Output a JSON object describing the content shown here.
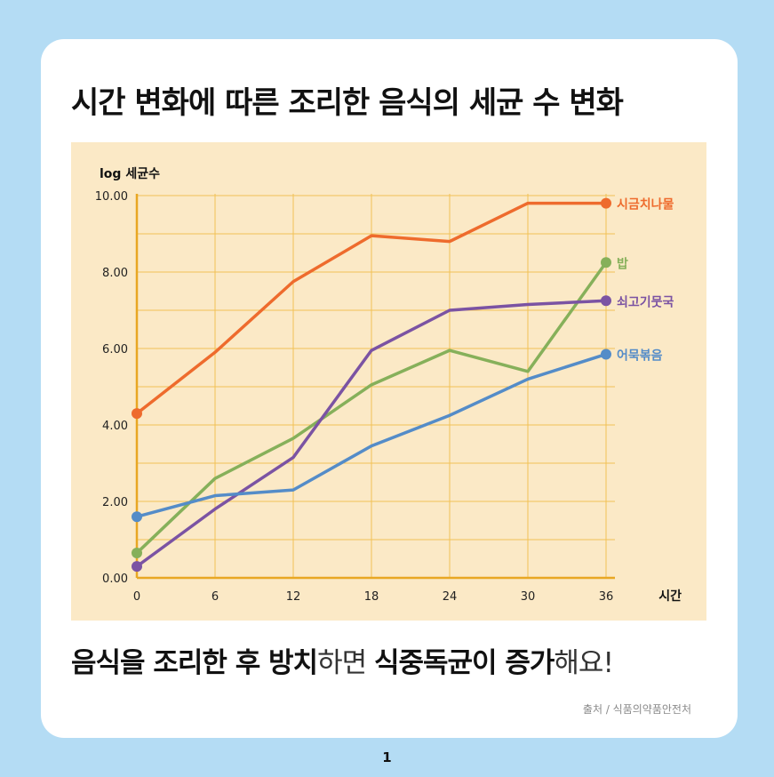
{
  "title": "시간 변화에 따른 조리한 음식의 세균 수 변화",
  "chart_data": {
    "type": "line",
    "ylabel": "log 세균수",
    "xlabel": "시간",
    "x": [
      0,
      6,
      12,
      18,
      24,
      30,
      36
    ],
    "x_tick_labels": [
      "0",
      "6",
      "12",
      "18",
      "24",
      "30",
      "36"
    ],
    "y_tick_labels": [
      "0.00",
      "2.00",
      "4.00",
      "6.00",
      "8.00",
      "10.00"
    ],
    "ylim": [
      0,
      10
    ],
    "xlim": [
      0,
      36
    ],
    "grid": true,
    "series": [
      {
        "name": "시금치나물",
        "color": "#ee6b2d",
        "values": [
          4.3,
          5.9,
          7.75,
          8.95,
          8.8,
          9.8,
          9.8
        ]
      },
      {
        "name": "밥",
        "color": "#86b05a",
        "values": [
          0.65,
          2.6,
          3.65,
          5.05,
          5.95,
          5.4,
          8.25
        ]
      },
      {
        "name": "쇠고기뭇국",
        "color": "#7b53a3",
        "values": [
          0.3,
          1.8,
          3.15,
          5.95,
          7.0,
          7.15,
          7.25
        ]
      },
      {
        "name": "어묵볶음",
        "color": "#548cc8",
        "values": [
          1.6,
          2.15,
          2.3,
          3.45,
          4.25,
          5.2,
          5.85
        ]
      }
    ]
  },
  "caption": {
    "part1": "음식을 조리한 후 방치",
    "part2": "하면 ",
    "part3": "식중독균이 증가",
    "part4": "해요!"
  },
  "source": "출처 / 식품의약품안전처",
  "page_number": "1"
}
